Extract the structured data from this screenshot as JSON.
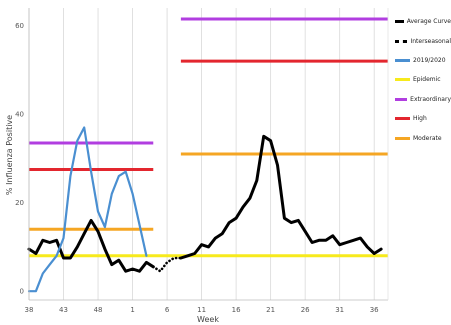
{
  "chart_data": {
    "type": "line",
    "title": "",
    "xlabel": "Week",
    "ylabel": "% Influenza Positive",
    "x_ticks": [
      "38",
      "43",
      "48",
      "1",
      "6",
      "11",
      "16",
      "21",
      "26",
      "31",
      "36"
    ],
    "y_ticks": [
      0,
      20,
      40,
      60
    ],
    "ylim": [
      -2,
      64
    ],
    "grid": "vertical lines at each x tick",
    "legend": {
      "placement": "right",
      "entries": [
        {
          "label": "Average Curve",
          "color": "#000000",
          "style": "solid"
        },
        {
          "label": "Interseasonal",
          "color": "#000000",
          "style": "dotted"
        },
        {
          "label": "2019/2020",
          "color": "#4a8fd1",
          "style": "solid"
        },
        {
          "label": "Epidemic",
          "color": "#f7ea1c",
          "style": "solid"
        },
        {
          "label": "Extraordinary",
          "color": "#b13ee0",
          "style": "solid"
        },
        {
          "label": "High",
          "color": "#e3262e",
          "style": "solid"
        },
        {
          "label": "Moderate",
          "color": "#f5a623",
          "style": "solid"
        }
      ]
    },
    "season_weeks": [
      "38",
      "39",
      "40",
      "41",
      "42",
      "43",
      "44",
      "45",
      "46",
      "47",
      "48",
      "49",
      "50",
      "51",
      "52",
      "1",
      "2",
      "3",
      "4",
      "5"
    ],
    "series": [
      {
        "name": "Average Curve",
        "color": "#000000",
        "segment": "early-season",
        "points": [
          [
            0,
            9.5
          ],
          [
            1,
            8.5
          ],
          [
            2,
            11.5
          ],
          [
            3,
            11
          ],
          [
            4,
            11.5
          ],
          [
            5,
            7.5
          ],
          [
            6,
            7.5
          ],
          [
            7,
            10
          ],
          [
            8,
            13
          ],
          [
            9,
            16
          ],
          [
            10,
            13.5
          ],
          [
            11,
            9.5
          ],
          [
            12,
            6
          ],
          [
            13,
            7
          ],
          [
            14,
            4.5
          ],
          [
            15,
            5
          ],
          [
            16,
            4.5
          ],
          [
            17,
            6.5
          ],
          [
            18,
            5.5
          ]
        ]
      },
      {
        "name": "Interseasonal",
        "color": "#000000",
        "segment": "transition",
        "points": [
          [
            18,
            5.5
          ],
          [
            19,
            4.5
          ],
          [
            20,
            6.5
          ],
          [
            21,
            7.5
          ],
          [
            22,
            7.5
          ]
        ]
      },
      {
        "name": "Average Curve",
        "color": "#000000",
        "segment": "late-season",
        "points": [
          [
            22,
            7.5
          ],
          [
            23,
            8
          ],
          [
            24,
            8.5
          ],
          [
            25,
            10.5
          ],
          [
            26,
            10
          ],
          [
            27,
            12
          ],
          [
            28,
            13
          ],
          [
            29,
            15.5
          ],
          [
            30,
            16.5
          ],
          [
            31,
            19
          ],
          [
            32,
            21
          ],
          [
            33,
            25
          ],
          [
            34,
            35
          ],
          [
            35,
            34
          ],
          [
            36,
            28.5
          ],
          [
            37,
            16.5
          ],
          [
            38,
            15.5
          ],
          [
            39,
            16
          ],
          [
            40,
            13.5
          ],
          [
            41,
            11
          ],
          [
            42,
            11.5
          ],
          [
            43,
            11.5
          ],
          [
            44,
            12.5
          ],
          [
            45,
            10.5
          ],
          [
            46,
            11
          ],
          [
            47,
            11.5
          ],
          [
            48,
            12
          ],
          [
            49,
            10
          ],
          [
            50,
            8.5
          ],
          [
            51,
            9.5
          ]
        ]
      },
      {
        "name": "2019/2020",
        "color": "#4a8fd1",
        "segment": "season",
        "points": [
          [
            0,
            0
          ],
          [
            1,
            0
          ],
          [
            2,
            4
          ],
          [
            3,
            6
          ],
          [
            4,
            8
          ],
          [
            5,
            12
          ],
          [
            6,
            26
          ],
          [
            7,
            34
          ],
          [
            8,
            37
          ],
          [
            9,
            27
          ],
          [
            10,
            18
          ],
          [
            11,
            14.5
          ],
          [
            12,
            22
          ],
          [
            13,
            26
          ],
          [
            14,
            27
          ],
          [
            15,
            22
          ],
          [
            16,
            15
          ],
          [
            17,
            8
          ]
        ]
      }
    ],
    "thresholds": [
      {
        "name": "Extraordinary",
        "color": "#b13ee0",
        "segments": [
          {
            "from": 0,
            "to": 18,
            "y": 33.5
          },
          {
            "from": 22,
            "to": 52,
            "y": 61.5
          }
        ]
      },
      {
        "name": "High",
        "color": "#e3262e",
        "segments": [
          {
            "from": 0,
            "to": 18,
            "y": 27.5
          },
          {
            "from": 22,
            "to": 52,
            "y": 52
          }
        ]
      },
      {
        "name": "Moderate",
        "color": "#f5a623",
        "segments": [
          {
            "from": 0,
            "to": 18,
            "y": 14
          },
          {
            "from": 22,
            "to": 52,
            "y": 31
          }
        ]
      },
      {
        "name": "Epidemic",
        "color": "#f7ea1c",
        "segments": [
          {
            "from": 0,
            "to": 52,
            "y": 8
          }
        ]
      }
    ]
  }
}
